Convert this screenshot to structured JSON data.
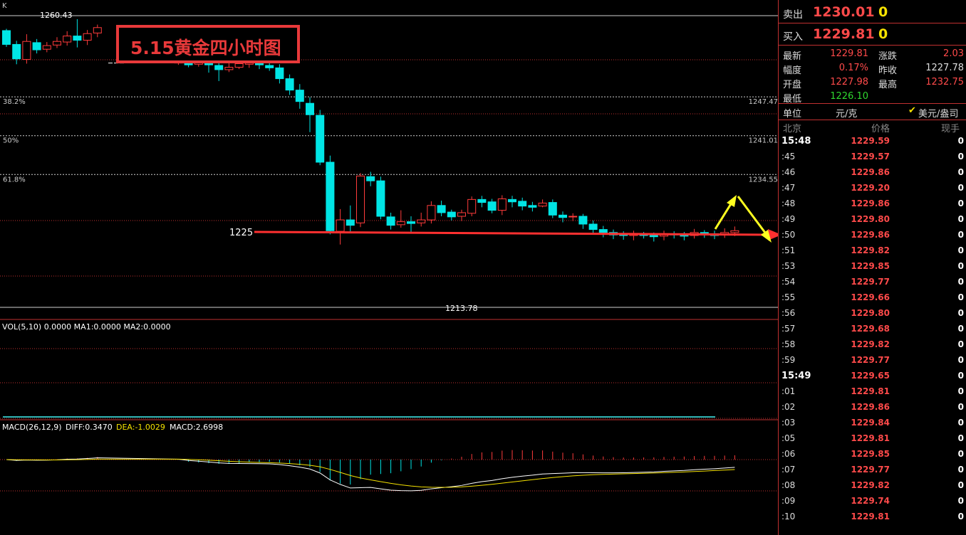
{
  "chart_title": "5.15黄金四小时图",
  "corner_label": "K",
  "colors": {
    "up": "#ff3b3b",
    "down": "#00e5e5",
    "grid": "#c03030",
    "fib": "#cfcfcf",
    "arrow_red": "#ff3030",
    "arrow_yellow": "#ffff20",
    "vol_label": "#ffffff",
    "ma2": "#f5e200",
    "diff": "#ffffff",
    "dea": "#f5e200"
  },
  "chart_data": {
    "type": "candlestick",
    "ylim": [
      1211.5,
      1263
    ],
    "price_labels": {
      "high": "1260.43",
      "low": "1213.78",
      "support": "1225"
    },
    "fib_levels": [
      {
        "label": "38.2%",
        "value_label": "1247.47",
        "price": 1247.47
      },
      {
        "label": "50%",
        "value_label": "1241.01",
        "price": 1241.01
      },
      {
        "label": "61.8%",
        "value_label": "1234.55",
        "price": 1234.55
      }
    ],
    "support_price": 1225,
    "candles": [
      [
        1258.5,
        1256.2,
        1258.8,
        1255.8
      ],
      [
        1256.2,
        1253.8,
        1256.8,
        1252.9
      ],
      [
        1253.7,
        1256.7,
        1257.9,
        1253.0
      ],
      [
        1256.5,
        1255.3,
        1257.1,
        1254.7
      ],
      [
        1255.4,
        1256.0,
        1256.6,
        1254.9
      ],
      [
        1256.1,
        1256.7,
        1257.4,
        1255.6
      ],
      [
        1256.6,
        1257.6,
        1258.4,
        1256.0
      ],
      [
        1257.6,
        1256.9,
        1260.4,
        1255.7
      ],
      [
        1256.9,
        1258.0,
        1258.6,
        1256.1
      ],
      [
        1258.1,
        1259.0,
        1259.5,
        1257.4
      ],
      null,
      null,
      null,
      null,
      null,
      null,
      null,
      [
        1253.1,
        1253.3,
        1253.4,
        1252.8
      ],
      [
        1253.2,
        1252.8,
        1253.5,
        1252.4
      ],
      [
        1252.9,
        1253.4,
        1253.9,
        1252.5
      ],
      [
        1253.4,
        1252.8,
        1254.1,
        1251.5
      ],
      [
        1252.7,
        1252.0,
        1253.3,
        1250.1
      ],
      [
        1252.0,
        1252.4,
        1253.1,
        1251.6
      ],
      [
        1252.4,
        1253.0,
        1253.8,
        1252.1
      ],
      [
        1252.9,
        1253.1,
        1253.8,
        1252.3
      ],
      [
        1253.2,
        1252.8,
        1253.7,
        1252.1
      ],
      [
        1252.7,
        1252.3,
        1253.1,
        1251.8
      ],
      [
        1252.3,
        1250.5,
        1252.9,
        1249.7
      ],
      [
        1250.5,
        1248.6,
        1251.2,
        1247.8
      ],
      [
        1248.6,
        1246.7,
        1249.6,
        1245.5
      ],
      [
        1246.4,
        1244.5,
        1247.4,
        1241.6
      ],
      [
        1244.4,
        1236.6,
        1245.3,
        1236.1
      ],
      [
        1236.6,
        1225.2,
        1237.7,
        1224.6
      ],
      [
        1225.1,
        1227.0,
        1228.8,
        1222.9
      ],
      [
        1227.0,
        1226.1,
        1229.4,
        1225.0
      ],
      [
        1226.5,
        1234.3,
        1234.8,
        1225.8
      ],
      [
        1234.2,
        1233.5,
        1235.0,
        1232.6
      ],
      [
        1233.5,
        1227.6,
        1234.2,
        1227.1
      ],
      [
        1227.5,
        1226.1,
        1228.2,
        1225.4
      ],
      [
        1226.2,
        1226.7,
        1228.6,
        1225.7
      ],
      [
        1226.7,
        1226.4,
        1227.6,
        1224.8
      ],
      [
        1226.5,
        1227.0,
        1228.2,
        1225.9
      ],
      [
        1227.0,
        1229.4,
        1230.1,
        1226.4
      ],
      [
        1229.4,
        1228.2,
        1230.2,
        1227.6
      ],
      [
        1228.3,
        1227.5,
        1228.7,
        1226.9
      ],
      [
        1227.6,
        1228.2,
        1228.7,
        1226.8
      ],
      [
        1228.1,
        1230.4,
        1230.9,
        1227.6
      ],
      [
        1230.4,
        1229.9,
        1231.0,
        1229.1
      ],
      [
        1230.0,
        1228.6,
        1230.5,
        1228.1
      ],
      [
        1228.6,
        1230.5,
        1231.1,
        1227.8
      ],
      [
        1230.4,
        1230.0,
        1231.0,
        1229.1
      ],
      [
        1230.1,
        1229.3,
        1230.7,
        1228.6
      ],
      [
        1229.4,
        1229.1,
        1230.0,
        1228.4
      ],
      [
        1229.3,
        1229.8,
        1230.4,
        1229.1
      ],
      [
        1229.9,
        1227.8,
        1230.4,
        1227.3
      ],
      [
        1227.8,
        1227.4,
        1228.4,
        1226.6
      ],
      [
        1227.5,
        1227.6,
        1228.1,
        1226.8
      ],
      [
        1227.6,
        1226.3,
        1228.0,
        1225.5
      ],
      [
        1226.3,
        1225.4,
        1226.9,
        1224.8
      ],
      [
        1225.4,
        1224.9,
        1226.0,
        1224.1
      ],
      [
        1224.9,
        1224.5,
        1225.4,
        1223.8
      ],
      [
        1224.6,
        1224.4,
        1225.1,
        1223.7
      ],
      [
        1224.4,
        1224.6,
        1225.2,
        1223.6
      ],
      [
        1224.6,
        1224.4,
        1225.0,
        1223.9
      ],
      [
        1224.4,
        1224.2,
        1224.9,
        1223.4
      ],
      [
        1224.3,
        1224.7,
        1225.2,
        1223.6
      ],
      [
        1224.7,
        1224.5,
        1225.1,
        1223.9
      ],
      [
        1224.6,
        1224.3,
        1225.0,
        1223.6
      ],
      [
        1224.4,
        1224.9,
        1225.5,
        1223.9
      ],
      [
        1224.9,
        1224.6,
        1225.3,
        1224.0
      ],
      [
        1224.7,
        1224.4,
        1225.2,
        1223.8
      ],
      [
        1224.5,
        1224.9,
        1225.6,
        1224.0
      ],
      [
        1224.9,
        1225.2,
        1225.9,
        1224.3
      ]
    ],
    "volume_label": "VOL(5,10) 0.0000 MA1:0.0000 MA2:0.0000",
    "macd_label": {
      "name": "MACD(26,12,9)",
      "diff": "DIFF:0.3470",
      "dea": "DEA:-1.0029",
      "macd": "MACD:2.6998"
    }
  },
  "quote": {
    "sell_label": "卖出",
    "sell_price": "1230.01",
    "sell_vol": "0",
    "buy_label": "买入",
    "buy_price": "1229.81",
    "buy_vol": "0",
    "stats": [
      {
        "label": "最新",
        "value": "1229.81"
      },
      {
        "label": "涨跌",
        "value": "2.03"
      },
      {
        "label": "幅度",
        "value": "0.17%"
      },
      {
        "label": "昨收",
        "value": "1227.78"
      },
      {
        "label": "开盘",
        "value": "1227.98"
      },
      {
        "label": "最高",
        "value": "1232.75"
      },
      {
        "label": "最低",
        "value": "1226.10"
      }
    ],
    "unit_label": "单位",
    "unit_value": "元/克",
    "currency_label": "美元/盎司",
    "headers": {
      "time": "北京",
      "price": "价格",
      "vol": "现手"
    },
    "ticks": [
      {
        "time": "15:48",
        "price": "1229.59",
        "vol": "0",
        "major": true
      },
      {
        "time": ":45",
        "price": "1229.57",
        "vol": "0"
      },
      {
        "time": ":46",
        "price": "1229.86",
        "vol": "0"
      },
      {
        "time": ":47",
        "price": "1229.20",
        "vol": "0"
      },
      {
        "time": ":48",
        "price": "1229.86",
        "vol": "0"
      },
      {
        "time": ":49",
        "price": "1229.80",
        "vol": "0"
      },
      {
        "time": ":50",
        "price": "1229.86",
        "vol": "0"
      },
      {
        "time": ":51",
        "price": "1229.82",
        "vol": "0"
      },
      {
        "time": ":53",
        "price": "1229.85",
        "vol": "0"
      },
      {
        "time": ":54",
        "price": "1229.77",
        "vol": "0"
      },
      {
        "time": ":55",
        "price": "1229.66",
        "vol": "0"
      },
      {
        "time": ":56",
        "price": "1229.80",
        "vol": "0"
      },
      {
        "time": ":57",
        "price": "1229.68",
        "vol": "0"
      },
      {
        "time": ":58",
        "price": "1229.82",
        "vol": "0"
      },
      {
        "time": ":59",
        "price": "1229.77",
        "vol": "0"
      },
      {
        "time": "15:49",
        "price": "1229.65",
        "vol": "0",
        "major": true
      },
      {
        "time": ":01",
        "price": "1229.81",
        "vol": "0"
      },
      {
        "time": ":02",
        "price": "1229.86",
        "vol": "0"
      },
      {
        "time": ":03",
        "price": "1229.84",
        "vol": "0"
      },
      {
        "time": ":05",
        "price": "1229.81",
        "vol": "0"
      },
      {
        "time": ":06",
        "price": "1229.85",
        "vol": "0"
      },
      {
        "time": ":07",
        "price": "1229.77",
        "vol": "0"
      },
      {
        "time": ":08",
        "price": "1229.82",
        "vol": "0"
      },
      {
        "time": ":09",
        "price": "1229.74",
        "vol": "0"
      },
      {
        "time": ":10",
        "price": "1229.81",
        "vol": "0"
      }
    ]
  }
}
